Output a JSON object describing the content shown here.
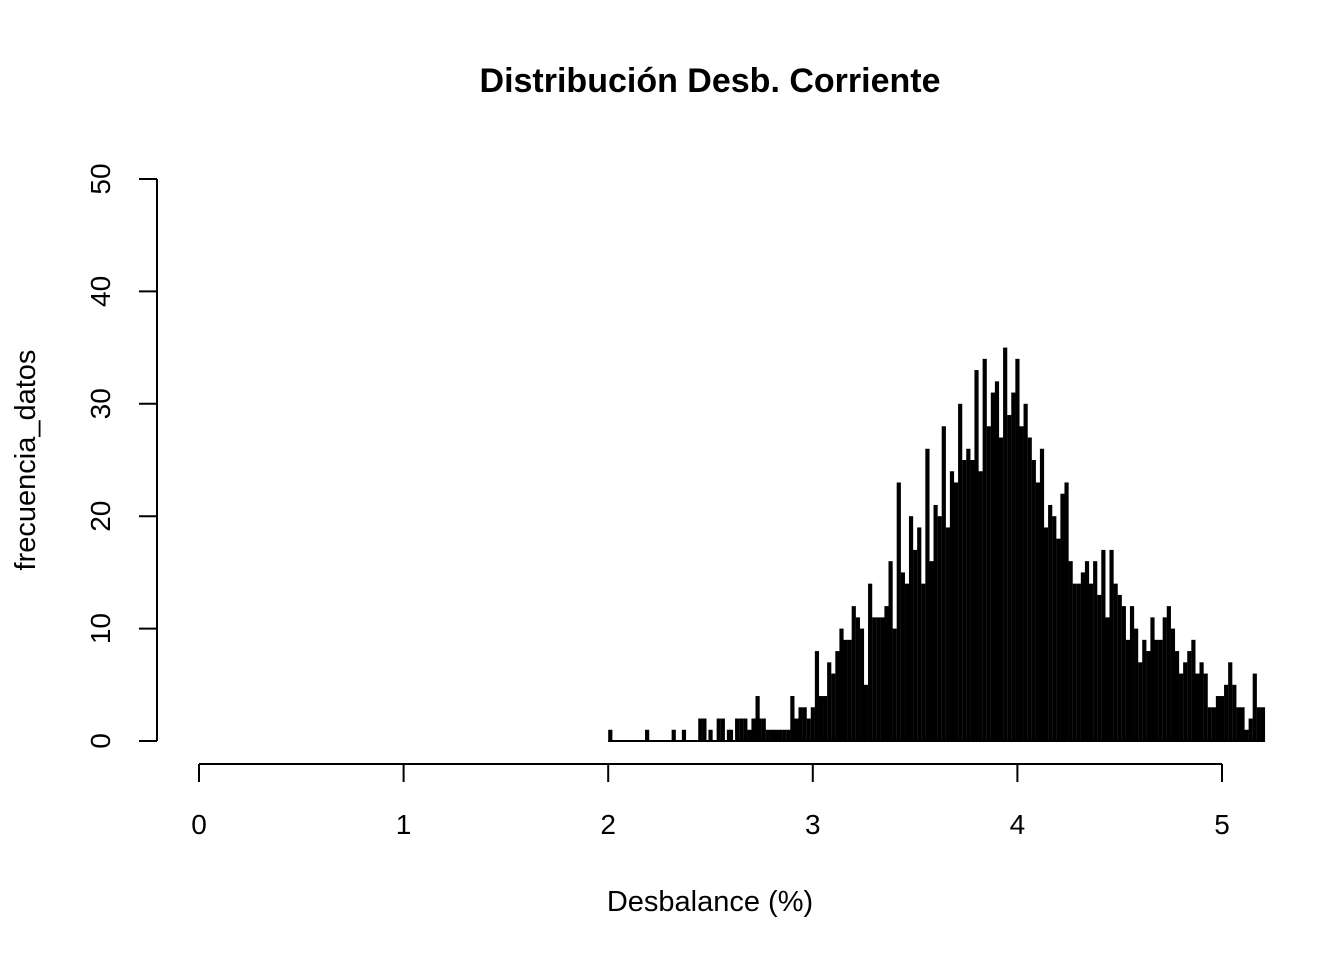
{
  "chart_data": {
    "type": "histogram",
    "title": "Distribución Desb. Corriente",
    "xlabel": "Desbalance (%)",
    "ylabel": "frecuencia_datos",
    "xlim": [
      0,
      5.2
    ],
    "ylim": [
      0,
      50
    ],
    "x_ticks": [
      "0",
      "1",
      "2",
      "3",
      "4",
      "5"
    ],
    "y_ticks": [
      "0",
      "10",
      "20",
      "30",
      "40",
      "50"
    ],
    "bin_width": 0.01,
    "grid": false,
    "x": [
      2.0,
      2.18,
      2.31,
      2.36,
      2.44,
      2.46,
      2.49,
      2.53,
      2.55,
      2.58,
      2.59,
      2.62,
      2.64,
      2.66,
      2.68,
      2.7,
      2.72,
      2.73,
      2.75,
      2.77,
      2.79,
      2.81,
      2.83,
      2.85,
      2.87,
      2.89,
      2.91,
      2.93,
      2.95,
      2.97,
      2.99,
      3.01,
      3.03,
      3.05,
      3.07,
      3.09,
      3.11,
      3.13,
      3.15,
      3.17,
      3.19,
      3.21,
      3.23,
      3.25,
      3.27,
      3.29,
      3.31,
      3.33,
      3.35,
      3.37,
      3.39,
      3.41,
      3.43,
      3.45,
      3.47,
      3.49,
      3.51,
      3.53,
      3.55,
      3.57,
      3.59,
      3.61,
      3.63,
      3.65,
      3.67,
      3.69,
      3.71,
      3.73,
      3.75,
      3.77,
      3.79,
      3.81,
      3.83,
      3.85,
      3.87,
      3.89,
      3.91,
      3.93,
      3.95,
      3.97,
      3.99,
      4.01,
      4.03,
      4.05,
      4.07,
      4.09,
      4.11,
      4.13,
      4.15,
      4.17,
      4.19,
      4.21,
      4.23,
      4.25,
      4.27,
      4.29,
      4.31,
      4.33,
      4.35,
      4.37,
      4.39,
      4.41,
      4.43,
      4.45,
      4.47,
      4.49,
      4.51,
      4.53,
      4.55,
      4.57,
      4.59,
      4.61,
      4.63,
      4.65,
      4.67,
      4.69,
      4.71,
      4.73,
      4.75,
      4.77,
      4.79,
      4.81,
      4.83,
      4.85,
      4.87,
      4.89,
      4.91,
      4.93,
      4.95,
      4.97,
      4.99,
      5.01,
      5.03,
      5.05,
      5.07,
      5.09,
      5.11,
      5.13,
      5.15,
      5.17,
      5.19
    ],
    "values": [
      1,
      1,
      1,
      1,
      2,
      2,
      1,
      2,
      2,
      1,
      1,
      2,
      2,
      2,
      1,
      2,
      4,
      2,
      2,
      1,
      1,
      1,
      1,
      1,
      1,
      4,
      2,
      3,
      3,
      2,
      3,
      8,
      4,
      4,
      7,
      6,
      8,
      10,
      9,
      9,
      12,
      11,
      10,
      5,
      14,
      11,
      11,
      11,
      12,
      16,
      10,
      23,
      15,
      14,
      20,
      17,
      19,
      14,
      26,
      16,
      21,
      20,
      28,
      19,
      24,
      23,
      30,
      25,
      26,
      25,
      33,
      24,
      34,
      28,
      31,
      32,
      27,
      35,
      29,
      31,
      34,
      28,
      30,
      27,
      25,
      23,
      26,
      19,
      21,
      20,
      18,
      22,
      23,
      16,
      14,
      14,
      15,
      16,
      14,
      16,
      13,
      17,
      11,
      17,
      14,
      13,
      12,
      9,
      12,
      10,
      7,
      9,
      8,
      11,
      9,
      9,
      11,
      12,
      10,
      8,
      6,
      7,
      8,
      9,
      6,
      7,
      6,
      3,
      3,
      4,
      4,
      5,
      7,
      5,
      3,
      3,
      1,
      2,
      6,
      3,
      3
    ],
    "colors": {
      "bars": "#000000",
      "axes": "#000000",
      "background": "#ffffff"
    }
  }
}
